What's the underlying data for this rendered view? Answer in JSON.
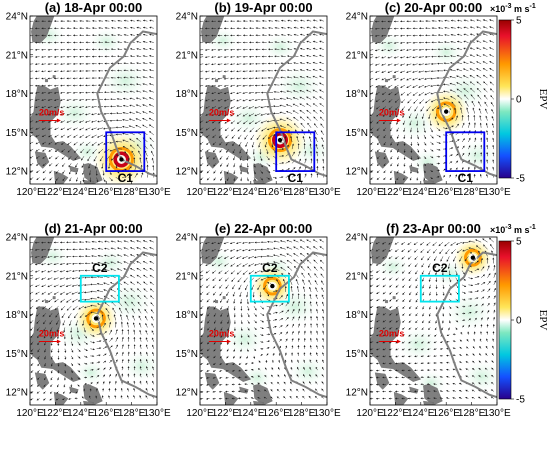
{
  "figure": {
    "panels": [
      {
        "title": "(a) 18-Apr 00:00",
        "box_label": "C1",
        "box_color": "#0000ee",
        "box": {
          "lon": [
            126,
            129
          ],
          "lat": [
            12,
            15
          ]
        },
        "storm": {
          "lon": 127.2,
          "lat": 12.9
        },
        "storm_strength": 1.0
      },
      {
        "title": "(b) 19-Apr 00:00",
        "box_label": "C1",
        "box_color": "#0000ee",
        "box": {
          "lon": [
            126,
            129
          ],
          "lat": [
            12,
            15
          ]
        },
        "storm": {
          "lon": 126.3,
          "lat": 14.4
        },
        "storm_strength": 0.95
      },
      {
        "title": "(c) 20-Apr 00:00",
        "box_label": "C1",
        "box_color": "#0000ee",
        "box": {
          "lon": [
            126,
            129
          ],
          "lat": [
            12,
            15
          ]
        },
        "storm": {
          "lon": 126.0,
          "lat": 16.6
        },
        "storm_strength": 0.75
      },
      {
        "title": "(d) 21-Apr 00:00",
        "box_label": "C2",
        "box_color": "#00e5ee",
        "box": {
          "lon": [
            124,
            127
          ],
          "lat": [
            19,
            21
          ]
        },
        "storm": {
          "lon": 125.2,
          "lat": 17.7
        },
        "storm_strength": 0.7
      },
      {
        "title": "(e) 22-Apr 00:00",
        "box_label": "C2",
        "box_color": "#00e5ee",
        "box": {
          "lon": [
            124,
            127
          ],
          "lat": [
            19,
            21
          ]
        },
        "storm": {
          "lon": 125.7,
          "lat": 20.2
        },
        "storm_strength": 0.65
      },
      {
        "title": "(f) 23-Apr 00:00",
        "box_label": "C2",
        "box_color": "#00e5ee",
        "box": {
          "lon": [
            124,
            127
          ],
          "lat": [
            19,
            21
          ]
        },
        "storm": {
          "lon": 128.1,
          "lat": 22.4
        },
        "storm_strength": 0.6
      }
    ],
    "lon_ticks": [
      "120°E",
      "122°E",
      "124°E",
      "126°E",
      "128°E",
      "130°E"
    ],
    "lat_ticks": [
      "12°N",
      "15°N",
      "18°N",
      "21°N",
      "24°N"
    ],
    "scale_label": "20m/s",
    "colorbar": {
      "label": "EPV",
      "unit": "×10",
      "unit_exp": "-3",
      "unit_rest": "m s",
      "unit_rest_exp": "-1",
      "ticks": [
        "5",
        "0",
        "-5"
      ]
    },
    "track": [
      [
        130,
        22.6
      ],
      [
        128.9,
        22.8
      ],
      [
        127.9,
        21.9
      ],
      [
        127.4,
        20.9
      ],
      [
        126.3,
        20.0
      ],
      [
        125.3,
        18.0
      ],
      [
        125.6,
        16.6
      ],
      [
        126.3,
        15.2
      ],
      [
        126.8,
        13.8
      ],
      [
        127.2,
        12.9
      ],
      [
        128.3,
        12.4
      ],
      [
        129.4,
        11.8
      ],
      [
        130,
        11.6
      ]
    ],
    "colors": {
      "land": "#7f7f7f",
      "track": "#808080",
      "scale_arrow": "#e00000",
      "tc_center": "#000000"
    }
  },
  "chart_data": {
    "type": "map",
    "variable": "EPV",
    "colorbar_range": [
      -5,
      5
    ],
    "lon_range": [
      120,
      130
    ],
    "lat_range": [
      11,
      24
    ],
    "panels": [
      "(a) 18-Apr 00:00",
      "(b) 19-Apr 00:00",
      "(c) 20-Apr 00:00",
      "(d) 21-Apr 00:00",
      "(e) 22-Apr 00:00",
      "(f) 23-Apr 00:00"
    ]
  }
}
